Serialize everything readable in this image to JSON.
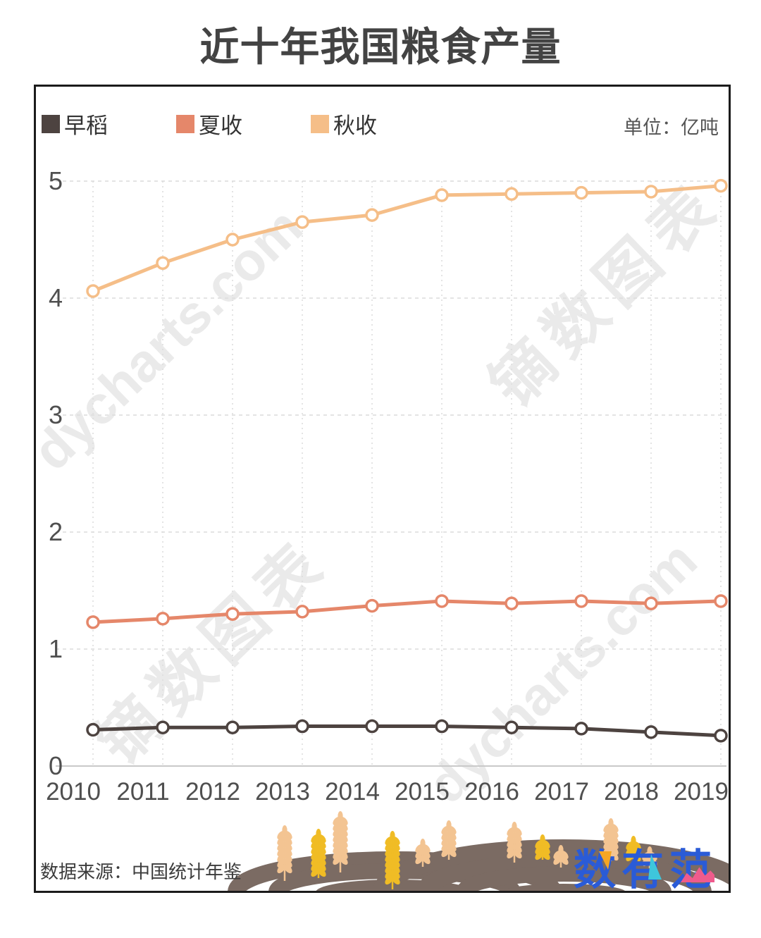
{
  "page_title": "近十年我国粮食产量",
  "unit_label": "单位：亿吨",
  "chart_data": {
    "type": "line",
    "title": "近十年我国粮食产量",
    "unit": "亿吨",
    "categories": [
      "2010",
      "2011",
      "2012",
      "2013",
      "2014",
      "2015",
      "2016",
      "2017",
      "2018",
      "2019"
    ],
    "series": [
      {
        "name": "早稻",
        "color": "#4D4340",
        "values": [
          0.31,
          0.33,
          0.33,
          0.34,
          0.34,
          0.34,
          0.33,
          0.32,
          0.29,
          0.26
        ]
      },
      {
        "name": "夏收",
        "color": "#E5876A",
        "values": [
          1.23,
          1.26,
          1.3,
          1.32,
          1.37,
          1.41,
          1.39,
          1.41,
          1.39,
          1.41
        ]
      },
      {
        "name": "秋收",
        "color": "#F5BE88",
        "values": [
          4.06,
          4.3,
          4.5,
          4.65,
          4.71,
          4.88,
          4.89,
          4.9,
          4.91,
          4.96
        ]
      }
    ],
    "ylim": [
      0,
      5
    ],
    "yticks": [
      0,
      1,
      2,
      3,
      4,
      5
    ],
    "grid": true,
    "legend_position": "top",
    "marker": "open-circle"
  },
  "watermarks": [
    {
      "text": "dycharts.com"
    },
    {
      "text": "镝数图表"
    },
    {
      "text": "镝数图表"
    },
    {
      "text": "dycharts.com"
    }
  ],
  "footer": {
    "source_label": "数据来源：中国统计年鉴",
    "logo_text": "数有范"
  },
  "decor_colors": {
    "arch_brown": "#7B6B63",
    "wheat_peach": "#F3C492",
    "wheat_gold": "#F0BC25"
  }
}
